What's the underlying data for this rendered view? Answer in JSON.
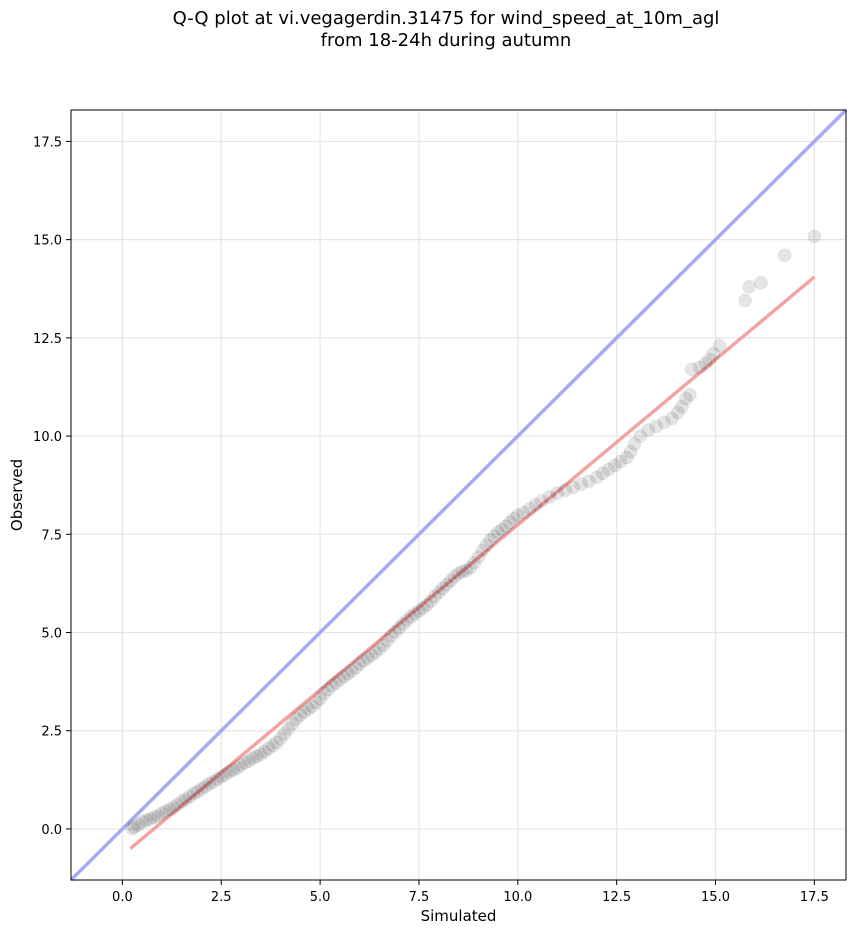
{
  "title": {
    "line1": "Q-Q plot at vi.vegagerdin.31475 for wind_speed_at_10m_agl",
    "line2": "from 18-24h during autumn"
  },
  "chart_data": {
    "type": "scatter",
    "xlabel": "Simulated",
    "ylabel": "Observed",
    "xlim": [
      -1.3,
      18.3
    ],
    "ylim": [
      -1.3,
      18.3
    ],
    "xticks": [
      0.0,
      2.5,
      5.0,
      7.5,
      10.0,
      12.5,
      15.0,
      17.5
    ],
    "yticks": [
      0.0,
      2.5,
      5.0,
      7.5,
      10.0,
      12.5,
      15.0,
      17.5
    ],
    "tick_labels": [
      "0.0",
      "2.5",
      "5.0",
      "7.5",
      "10.0",
      "12.5",
      "15.0",
      "17.5"
    ],
    "grid": true,
    "identity_line": {
      "color": "#a6a9f5",
      "from": [
        -1.3,
        -1.3
      ],
      "to": [
        18.3,
        18.3
      ]
    },
    "fit_line": {
      "color": "#f4a3a3",
      "from": [
        0.2,
        -0.5
      ],
      "to": [
        17.5,
        14.05
      ]
    },
    "point_color": "#000000",
    "series": [
      {
        "points": [
          [
            0.25,
            0.0
          ],
          [
            0.3,
            0.05
          ],
          [
            0.4,
            0.1
          ],
          [
            0.5,
            0.18
          ],
          [
            0.6,
            0.22
          ],
          [
            0.7,
            0.25
          ],
          [
            0.8,
            0.3
          ],
          [
            0.9,
            0.33
          ],
          [
            1.0,
            0.4
          ],
          [
            1.1,
            0.45
          ],
          [
            1.2,
            0.5
          ],
          [
            1.3,
            0.55
          ],
          [
            1.4,
            0.62
          ],
          [
            1.5,
            0.7
          ],
          [
            1.6,
            0.75
          ],
          [
            1.7,
            0.82
          ],
          [
            1.8,
            0.9
          ],
          [
            1.9,
            0.95
          ],
          [
            2.0,
            1.02
          ],
          [
            2.1,
            1.08
          ],
          [
            2.2,
            1.15
          ],
          [
            2.3,
            1.2
          ],
          [
            2.4,
            1.27
          ],
          [
            2.5,
            1.33
          ],
          [
            2.6,
            1.38
          ],
          [
            2.7,
            1.45
          ],
          [
            2.8,
            1.5
          ],
          [
            2.9,
            1.55
          ],
          [
            3.0,
            1.62
          ],
          [
            3.1,
            1.68
          ],
          [
            3.2,
            1.73
          ],
          [
            3.3,
            1.8
          ],
          [
            3.4,
            1.85
          ],
          [
            3.5,
            1.9
          ],
          [
            3.6,
            1.97
          ],
          [
            3.7,
            2.05
          ],
          [
            3.8,
            2.12
          ],
          [
            3.9,
            2.2
          ],
          [
            4.0,
            2.3
          ],
          [
            4.1,
            2.42
          ],
          [
            4.2,
            2.55
          ],
          [
            4.3,
            2.68
          ],
          [
            4.4,
            2.8
          ],
          [
            4.5,
            2.9
          ],
          [
            4.6,
            2.98
          ],
          [
            4.7,
            3.05
          ],
          [
            4.8,
            3.12
          ],
          [
            4.9,
            3.22
          ],
          [
            5.0,
            3.32
          ],
          [
            5.1,
            3.45
          ],
          [
            5.2,
            3.55
          ],
          [
            5.3,
            3.65
          ],
          [
            5.4,
            3.72
          ],
          [
            5.5,
            3.8
          ],
          [
            5.6,
            3.88
          ],
          [
            5.7,
            3.95
          ],
          [
            5.8,
            4.02
          ],
          [
            5.9,
            4.1
          ],
          [
            6.0,
            4.2
          ],
          [
            6.1,
            4.28
          ],
          [
            6.2,
            4.35
          ],
          [
            6.3,
            4.42
          ],
          [
            6.4,
            4.5
          ],
          [
            6.5,
            4.58
          ],
          [
            6.6,
            4.68
          ],
          [
            6.7,
            4.8
          ],
          [
            6.8,
            4.92
          ],
          [
            6.9,
            5.02
          ],
          [
            7.0,
            5.12
          ],
          [
            7.1,
            5.22
          ],
          [
            7.2,
            5.32
          ],
          [
            7.3,
            5.4
          ],
          [
            7.4,
            5.48
          ],
          [
            7.5,
            5.55
          ],
          [
            7.6,
            5.62
          ],
          [
            7.7,
            5.7
          ],
          [
            7.8,
            5.8
          ],
          [
            7.9,
            5.92
          ],
          [
            8.0,
            6.02
          ],
          [
            8.1,
            6.12
          ],
          [
            8.2,
            6.22
          ],
          [
            8.3,
            6.32
          ],
          [
            8.4,
            6.42
          ],
          [
            8.5,
            6.5
          ],
          [
            8.6,
            6.55
          ],
          [
            8.7,
            6.58
          ],
          [
            8.8,
            6.65
          ],
          [
            8.9,
            6.78
          ],
          [
            9.0,
            6.92
          ],
          [
            9.1,
            7.08
          ],
          [
            9.2,
            7.22
          ],
          [
            9.3,
            7.35
          ],
          [
            9.4,
            7.45
          ],
          [
            9.5,
            7.55
          ],
          [
            9.6,
            7.62
          ],
          [
            9.7,
            7.7
          ],
          [
            9.8,
            7.8
          ],
          [
            9.9,
            7.9
          ],
          [
            10.0,
            7.98
          ],
          [
            10.15,
            8.05
          ],
          [
            10.3,
            8.15
          ],
          [
            10.45,
            8.25
          ],
          [
            10.6,
            8.35
          ],
          [
            10.8,
            8.45
          ],
          [
            11.0,
            8.55
          ],
          [
            11.2,
            8.62
          ],
          [
            11.4,
            8.7
          ],
          [
            11.6,
            8.78
          ],
          [
            11.8,
            8.85
          ],
          [
            12.0,
            8.95
          ],
          [
            12.15,
            9.05
          ],
          [
            12.3,
            9.15
          ],
          [
            12.45,
            9.25
          ],
          [
            12.6,
            9.35
          ],
          [
            12.75,
            9.45
          ],
          [
            12.85,
            9.6
          ],
          [
            12.95,
            9.8
          ],
          [
            13.1,
            10.0
          ],
          [
            13.3,
            10.15
          ],
          [
            13.5,
            10.25
          ],
          [
            13.7,
            10.35
          ],
          [
            13.9,
            10.45
          ],
          [
            14.05,
            10.6
          ],
          [
            14.15,
            10.75
          ],
          [
            14.25,
            10.95
          ],
          [
            14.35,
            11.05
          ],
          [
            14.4,
            11.7
          ],
          [
            14.6,
            11.75
          ],
          [
            14.75,
            11.85
          ],
          [
            14.85,
            11.95
          ],
          [
            14.95,
            12.1
          ],
          [
            15.1,
            12.3
          ],
          [
            15.75,
            13.45
          ],
          [
            15.85,
            13.8
          ],
          [
            16.15,
            13.9
          ],
          [
            16.75,
            14.6
          ],
          [
            17.5,
            15.08
          ]
        ]
      }
    ]
  }
}
